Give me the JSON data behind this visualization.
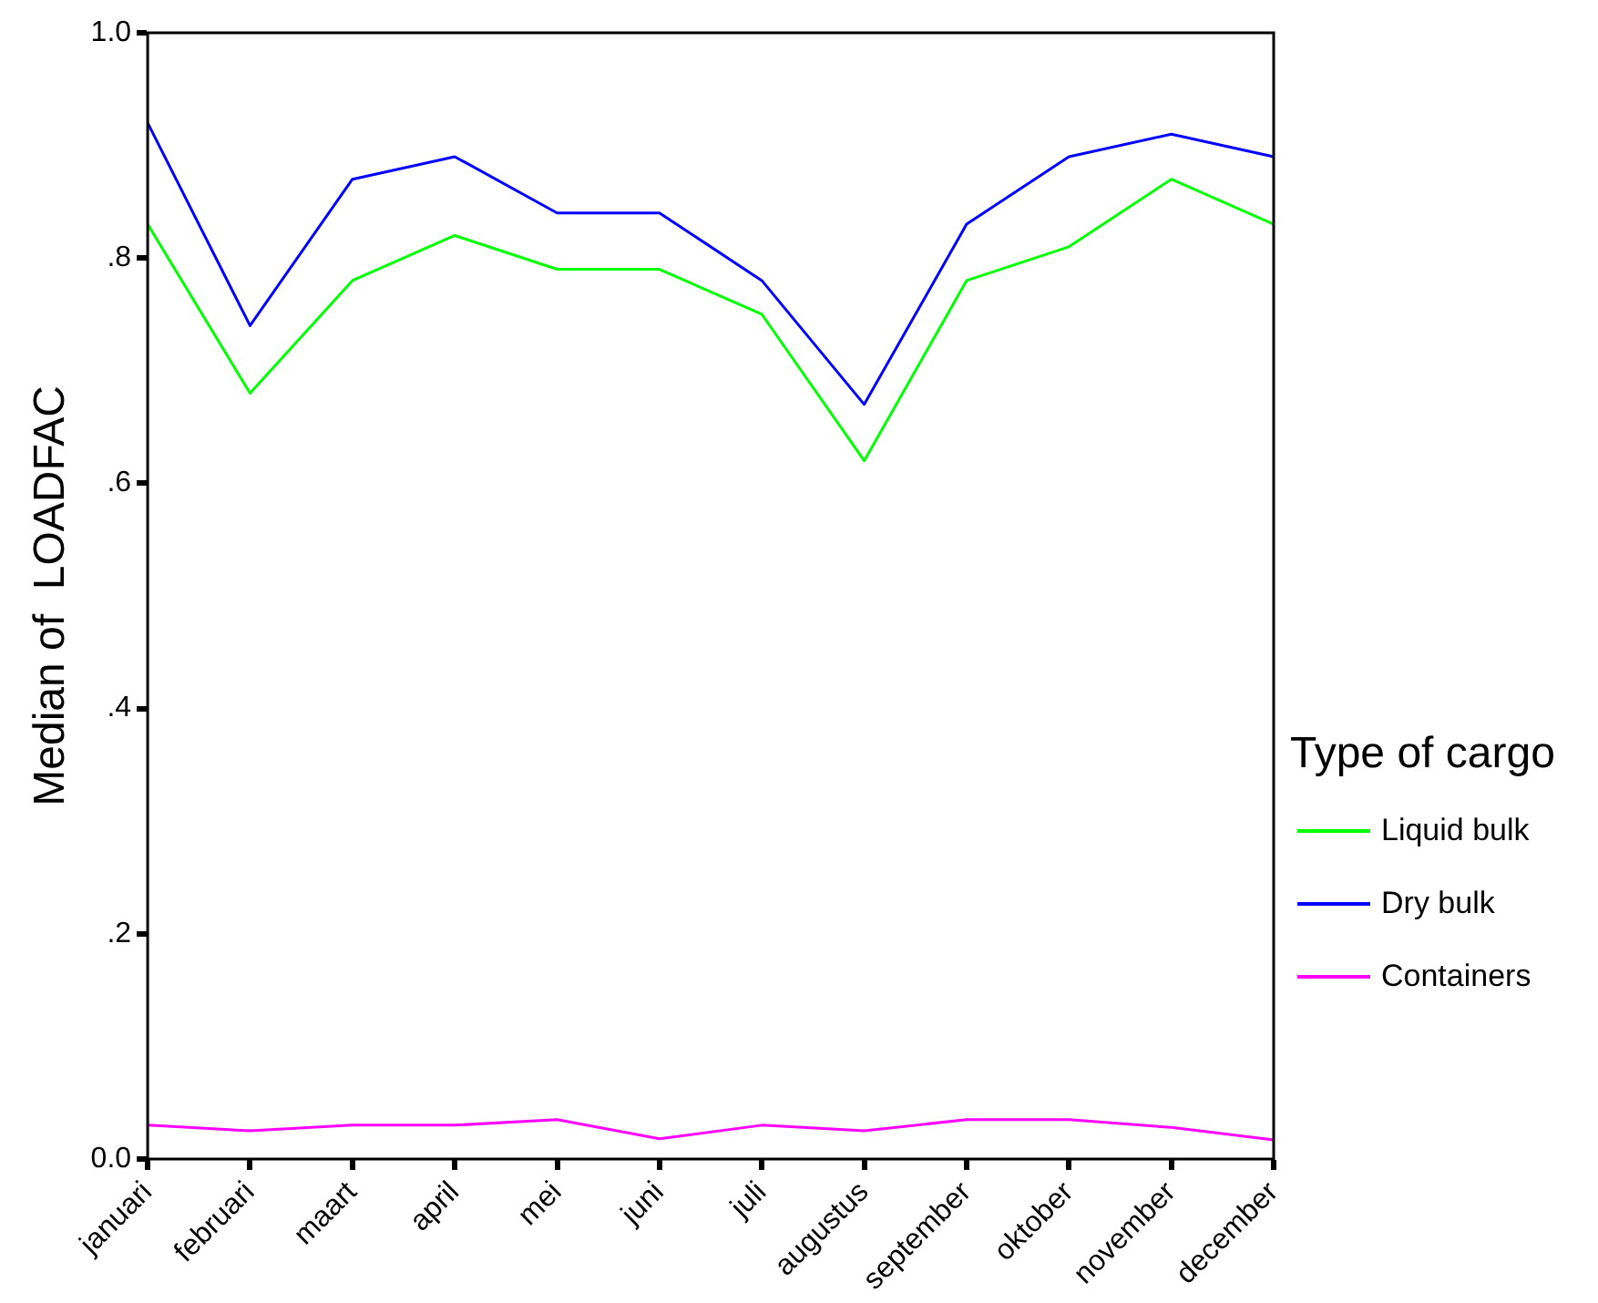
{
  "chart_data": {
    "type": "line",
    "ylabel": "Median of  LOADFAC",
    "legend_title": "Type of cargo",
    "legend": "right",
    "grid": false,
    "marker": "none",
    "categories": [
      "januari",
      "februari",
      "maart",
      "april",
      "mei",
      "juni",
      "juli",
      "augustus",
      "september",
      "oktober",
      "november",
      "december"
    ],
    "ylim": [
      0,
      1
    ],
    "yticks": [
      {
        "value": 0,
        "label": "0.0"
      },
      {
        "value": 0.2,
        "label": ".2"
      },
      {
        "value": 0.4,
        "label": ".4"
      },
      {
        "value": 0.6,
        "label": ".6"
      },
      {
        "value": 0.8,
        "label": ".8"
      },
      {
        "value": 1,
        "label": "1.0"
      }
    ],
    "series": [
      {
        "name": "Liquid bulk",
        "color": "#00ff00",
        "values": [
          0.83,
          0.68,
          0.78,
          0.82,
          0.79,
          0.79,
          0.75,
          0.62,
          0.78,
          0.81,
          0.87,
          0.83
        ]
      },
      {
        "name": "Dry bulk",
        "color": "#0000ff",
        "values": [
          0.92,
          0.74,
          0.87,
          0.89,
          0.84,
          0.84,
          0.78,
          0.67,
          0.83,
          0.89,
          0.91,
          0.89
        ]
      },
      {
        "name": "Containers",
        "color": "#ff00ff",
        "values": [
          0.03,
          0.025,
          0.03,
          0.03,
          0.035,
          0.018,
          0.03,
          0.025,
          0.035,
          0.035,
          0.028,
          0.017
        ]
      }
    ]
  }
}
